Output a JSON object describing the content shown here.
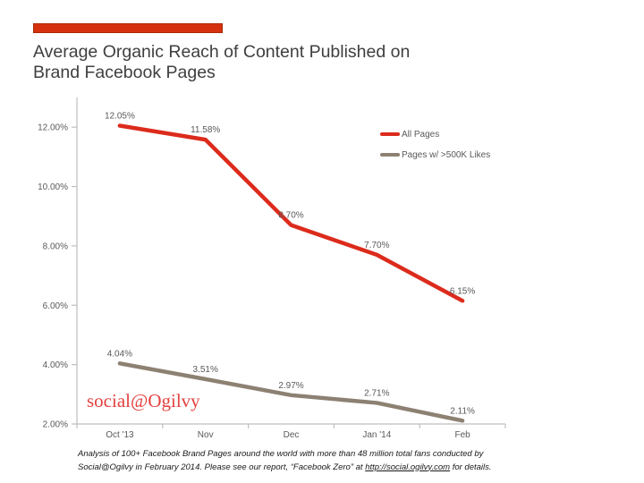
{
  "header": {
    "title_line1": "Average Organic Reach of Content Published on",
    "title_line2": "Brand Facebook Pages"
  },
  "branding": {
    "watermark": "social@Ogilvy"
  },
  "footnote": {
    "line1": "Analysis of 100+ Facebook Brand Pages around the world with more than 48 million total fans conducted by",
    "line2_pre": "Social@Ogilvy in February 2014. Please see our report, “Facebook Zero” at ",
    "link_text": "http://social.ogilvy.com",
    "line2_post": " for details."
  },
  "colors": {
    "accent_bar": "#D5310E",
    "accent_bar_border": "#AE2A09",
    "axis": "#BFBFBF",
    "tick_labels": "#595959",
    "data_labels": "#595959",
    "title_text": "#3F3F3F",
    "watermark": "#E2413F"
  },
  "chart_data": {
    "type": "line",
    "title": "Average Organic Reach of Content Published on Brand Facebook Pages",
    "categories": [
      "Oct '13",
      "Nov",
      "Dec",
      "Jan '14",
      "Feb"
    ],
    "series": [
      {
        "name": "All Pages",
        "color": "#DC2B1C",
        "values": [
          12.05,
          11.58,
          8.7,
          7.7,
          6.15
        ],
        "point_labels": [
          "12.05%",
          "11.58%",
          "8.70%",
          "7.70%",
          "6.15%"
        ]
      },
      {
        "name": "Pages w/ >500K Likes",
        "color": "#8C8172",
        "values": [
          4.04,
          3.51,
          2.97,
          2.71,
          2.11
        ],
        "point_labels": [
          "4.04%",
          "3.51%",
          "2.97%",
          "2.71%",
          "2.11%"
        ]
      }
    ],
    "xlabel": "",
    "ylabel": "",
    "ylim": [
      2,
      13
    ],
    "y_ticks": [
      {
        "value": 2,
        "label": "2.00%"
      },
      {
        "value": 4,
        "label": "4.00%"
      },
      {
        "value": 6,
        "label": "6.00%"
      },
      {
        "value": 8,
        "label": "8.00%"
      },
      {
        "value": 10,
        "label": "10.00%"
      },
      {
        "value": 12,
        "label": "12.00%"
      }
    ],
    "grid": false,
    "legend_position": "inside-top-right"
  }
}
